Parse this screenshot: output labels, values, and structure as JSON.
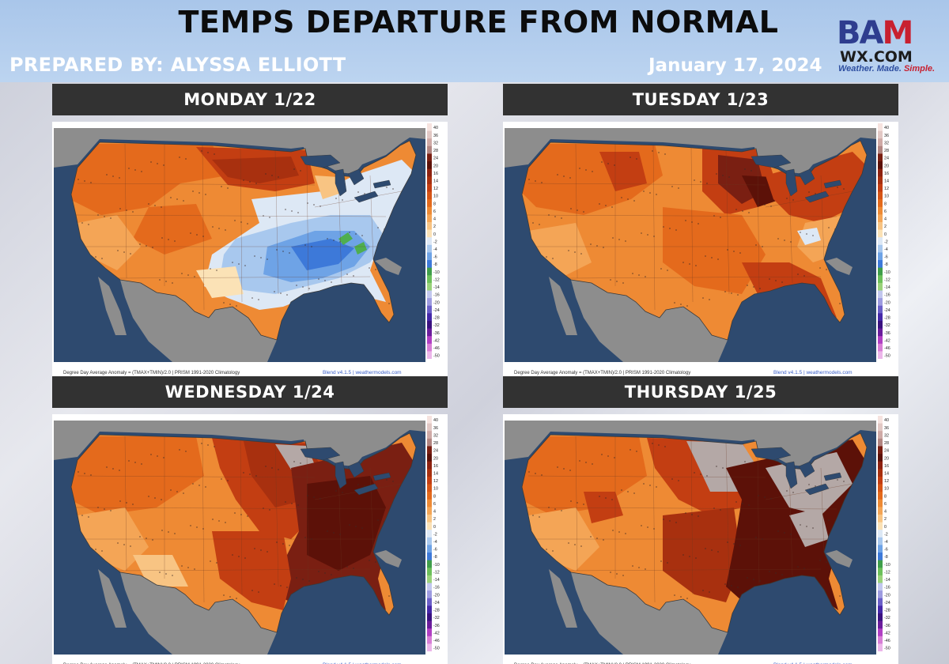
{
  "header": {
    "title": "TEMPS DEPARTURE FROM NORMAL",
    "prepared_by": "PREPARED BY: ALYSSA ELLIOTT",
    "date": "January 17, 2024",
    "logo": {
      "b": "B",
      "a": "A",
      "m": "M",
      "site": "WX.COM",
      "tag_part1": "Weather. Made.",
      "tag_part2": "Simple."
    }
  },
  "panels": [
    {
      "label": "MONDAY 1/22",
      "scenario": "cold-east"
    },
    {
      "label": "TUESDAY 1/23",
      "scenario": "warm-central"
    },
    {
      "label": "WEDNESDAY 1/24",
      "scenario": "warm-east"
    },
    {
      "label": "THURSDAY 1/25",
      "scenario": "hot-east"
    }
  ],
  "map_footer": {
    "left": "Degree Day Average Anomaly = (TMAX+TMIN)/2.0 | PRISM 1991-2020 Climatology",
    "right": "Blend v4.1.5 | weathermodels.com"
  },
  "legend": {
    "ticks": [
      "40",
      "36",
      "32",
      "28",
      "24",
      "20",
      "16",
      "14",
      "12",
      "10",
      "8",
      "6",
      "4",
      "2",
      "0",
      "-2",
      "-4",
      "-6",
      "-8",
      "-10",
      "-12",
      "-14",
      "-16",
      "-20",
      "-24",
      "-28",
      "-32",
      "-36",
      "-42",
      "-46",
      "-50"
    ],
    "colors": [
      "#f6e3df",
      "#e2c8c4",
      "#cfaaa6",
      "#b28682",
      "#7a1f12",
      "#5c1108",
      "#8e2210",
      "#a8300f",
      "#c33e12",
      "#d65516",
      "#e46a1c",
      "#ee8a34",
      "#f4a556",
      "#f8c483",
      "#fbe2b6",
      "#dde8f5",
      "#a8c8ee",
      "#6ea3e6",
      "#3d79d9",
      "#3f9e4a",
      "#6cc05a",
      "#9ad27a",
      "#c2c7ee",
      "#9d9be0",
      "#6b5fc8",
      "#4528a8",
      "#3a1280",
      "#6b1d9c",
      "#b13fc3",
      "#d87ed6",
      "#ecb6ea"
    ],
    "palette": {
      "ocean": "#2e4a6f",
      "land_outside": "#8d8d8d",
      "lakes": "#2e4a6f"
    }
  }
}
